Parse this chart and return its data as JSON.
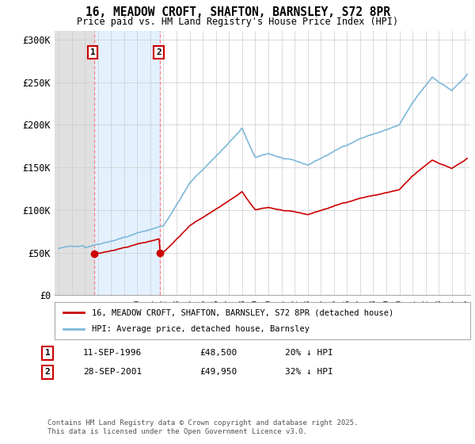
{
  "title": "16, MEADOW CROFT, SHAFTON, BARNSLEY, S72 8PR",
  "subtitle": "Price paid vs. HM Land Registry's House Price Index (HPI)",
  "hpi_color": "#7db8d8",
  "price_color": "#cc0000",
  "background_color": "#ffffff",
  "grid_color": "#cccccc",
  "ylim": [
    0,
    310000
  ],
  "yticks": [
    0,
    50000,
    100000,
    150000,
    200000,
    250000,
    300000
  ],
  "ytick_labels": [
    "£0",
    "£50K",
    "£100K",
    "£150K",
    "£200K",
    "£250K",
    "£300K"
  ],
  "sale1_year": 1996.71,
  "sale1_price": 48500,
  "sale2_year": 2001.74,
  "sale2_price": 49950,
  "xmin": 1993.7,
  "xmax": 2025.4,
  "legend_property": "16, MEADOW CROFT, SHAFTON, BARNSLEY, S72 8PR (detached house)",
  "legend_hpi": "HPI: Average price, detached house, Barnsley",
  "annotation1_label": "1",
  "annotation1_date": "11-SEP-1996",
  "annotation1_price": "£48,500",
  "annotation1_hpi": "20% ↓ HPI",
  "annotation2_label": "2",
  "annotation2_date": "28-SEP-2001",
  "annotation2_price": "£49,950",
  "annotation2_hpi": "32% ↓ HPI",
  "footer": "Contains HM Land Registry data © Crown copyright and database right 2025.\nThis data is licensed under the Open Government Licence v3.0."
}
